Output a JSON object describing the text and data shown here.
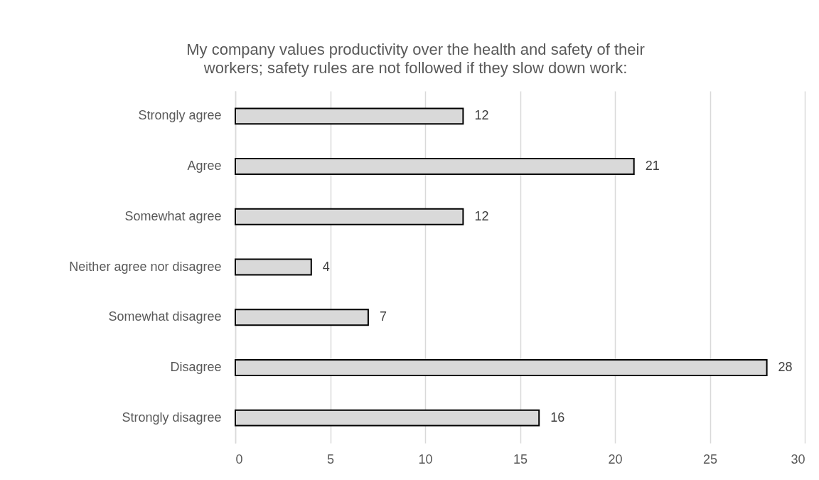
{
  "chart_data": {
    "type": "bar",
    "orientation": "horizontal",
    "title": "My company values productivity over the health and safety of their workers; safety rules are not followed if they slow down work:",
    "categories": [
      "Strongly agree",
      "Agree",
      "Somewhat agree",
      "Neither agree nor disagree",
      "Somewhat disagree",
      "Disagree",
      "Strongly disagree"
    ],
    "values": [
      12,
      21,
      12,
      4,
      7,
      28,
      16
    ],
    "color": "#d9d9d9",
    "data_labels": true,
    "xlim": [
      0,
      30
    ],
    "xticks": [
      0,
      5,
      10,
      15,
      20,
      25,
      30
    ],
    "grid": "x"
  }
}
